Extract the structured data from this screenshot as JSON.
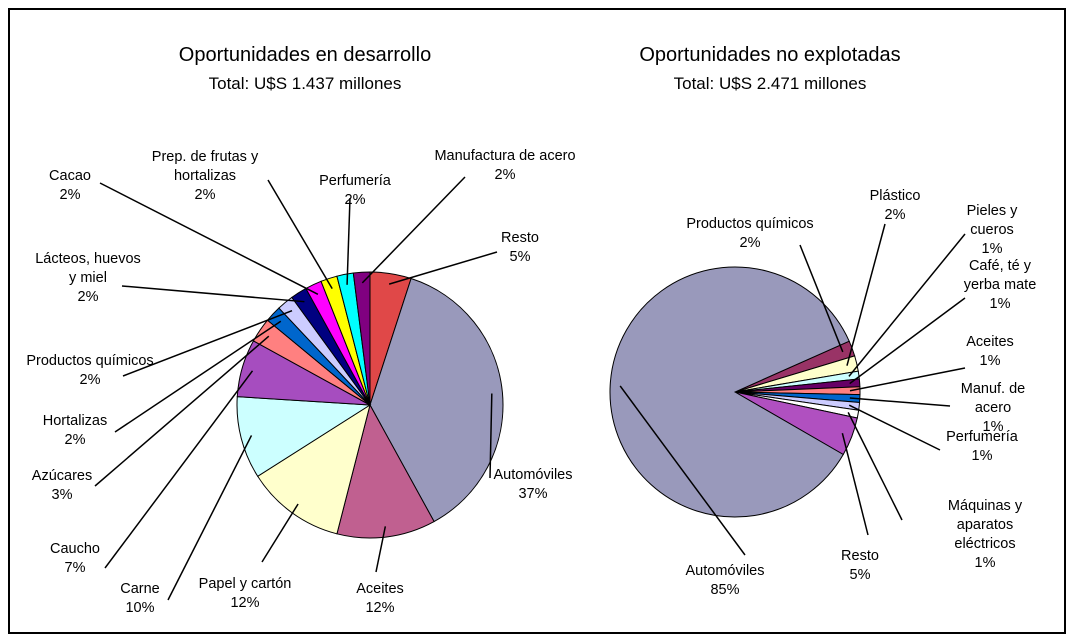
{
  "chart_data": [
    {
      "type": "pie",
      "title": "Oportunidades en desarrollo",
      "subtitle": "Total: U$S 1.437 millones",
      "categories": [
        "Resto",
        "Automóviles",
        "Aceites",
        "Papel y cartón",
        "Carne",
        "Caucho",
        "Azúcares",
        "Hortalizas",
        "Productos químicos",
        "Lácteos, huevos\ny miel",
        "Cacao",
        "Prep. de frutas y\nhortalizas",
        "Perfumería",
        "Manufactura de acero"
      ],
      "values": [
        5,
        37,
        12,
        12,
        10,
        7,
        3,
        2,
        2,
        2,
        2,
        2,
        2,
        2
      ],
      "value_labels": [
        "5%",
        "37%",
        "12%",
        "12%",
        "10%",
        "7%",
        "3%",
        "2%",
        "2%",
        "2%",
        "2%",
        "2%",
        "2%",
        "2%"
      ],
      "colors": [
        "#e04848",
        "#9999bb",
        "#c06090",
        "#ffffcc",
        "#ccffff",
        "#a64dbf",
        "#ff8080",
        "#0066cc",
        "#ccccff",
        "#000080",
        "#ff00ff",
        "#ffff00",
        "#00ffff",
        "#800080"
      ]
    },
    {
      "type": "pie",
      "title": "Oportunidades no explotadas",
      "subtitle": "Total: U$S 2.471 millones",
      "categories": [
        "Productos químicos",
        "Plástico",
        "Pieles y cueros",
        "Café, té y\nyerba mate",
        "Aceites",
        "Manuf. de acero",
        "Perfumería",
        "Máquinas y aparatos\neléctricos",
        "Resto",
        "Automóviles"
      ],
      "values": [
        2,
        2,
        1,
        1,
        1,
        1,
        1,
        1,
        5,
        85
      ],
      "value_labels": [
        "2%",
        "2%",
        "1%",
        "1%",
        "1%",
        "1%",
        "1%",
        "1%",
        "5%",
        "85%"
      ],
      "colors": [
        "#993366",
        "#ffffcc",
        "#ccffff",
        "#660066",
        "#ff8080",
        "#0066cc",
        "#ccccff",
        "#ffffff",
        "#b050c0",
        "#9999bb"
      ]
    }
  ]
}
